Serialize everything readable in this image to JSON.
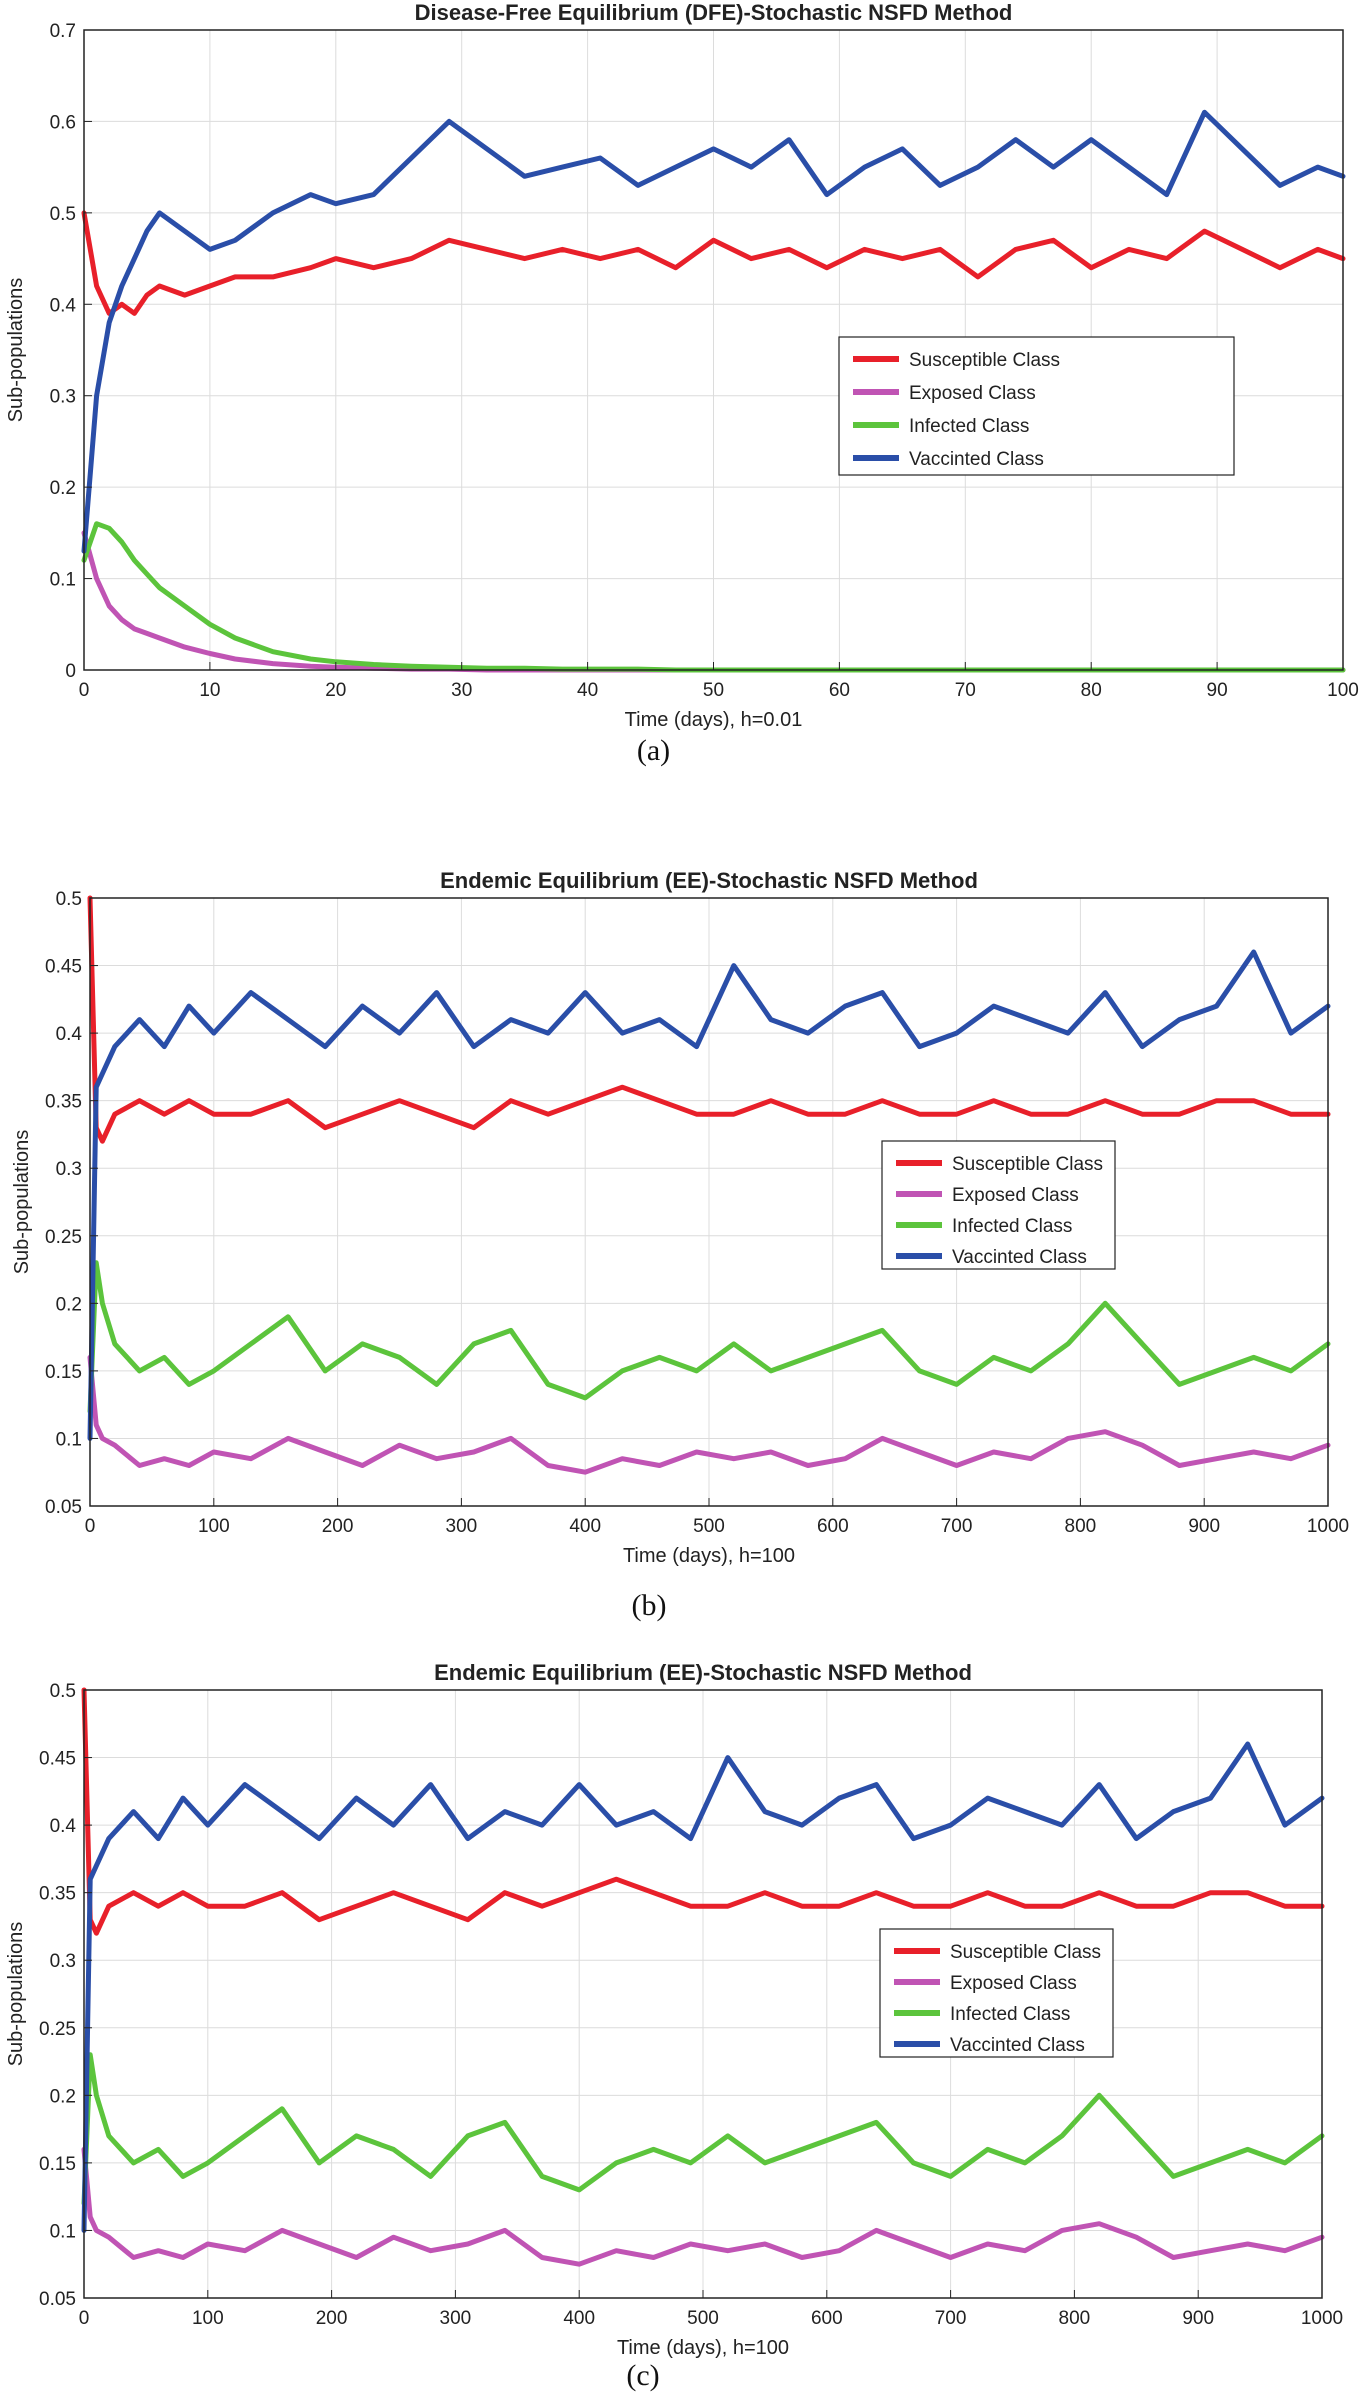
{
  "chart_data": [
    {
      "type": "line",
      "title": "Disease-Free Equilibrium (DFE)-Stochastic NSFD Method",
      "xlabel": "Time (days), h=0.01",
      "ylabel": "Sub-populations",
      "caption": "(a)",
      "xlim": [
        0,
        100
      ],
      "ylim": [
        0,
        0.7
      ],
      "xticks": [
        0,
        10,
        20,
        30,
        40,
        50,
        60,
        70,
        80,
        90,
        100
      ],
      "yticks": [
        0,
        0.1,
        0.2,
        0.3,
        0.4,
        0.5,
        0.6,
        0.7
      ],
      "grid": true,
      "legend_position": "center-right",
      "x": [
        0,
        1,
        2,
        3,
        4,
        5,
        6,
        8,
        10,
        12,
        15,
        18,
        20,
        23,
        26,
        29,
        32,
        35,
        38,
        41,
        44,
        47,
        50,
        53,
        56,
        59,
        62,
        65,
        68,
        71,
        74,
        77,
        80,
        83,
        86,
        89,
        92,
        95,
        98,
        100
      ],
      "series": [
        {
          "name": "Susceptible Class",
          "color": "#e8202a",
          "values": [
            0.5,
            0.42,
            0.39,
            0.4,
            0.39,
            0.41,
            0.42,
            0.41,
            0.42,
            0.43,
            0.43,
            0.44,
            0.45,
            0.44,
            0.45,
            0.47,
            0.46,
            0.45,
            0.46,
            0.45,
            0.46,
            0.44,
            0.47,
            0.45,
            0.46,
            0.44,
            0.46,
            0.45,
            0.46,
            0.43,
            0.46,
            0.47,
            0.44,
            0.46,
            0.45,
            0.48,
            0.46,
            0.44,
            0.46,
            0.45
          ]
        },
        {
          "name": "Exposed Class",
          "color": "#c054b4",
          "values": [
            0.15,
            0.1,
            0.07,
            0.055,
            0.045,
            0.04,
            0.035,
            0.025,
            0.018,
            0.012,
            0.007,
            0.004,
            0.003,
            0.002,
            0.001,
            0.001,
            0.0,
            0.0,
            0.0,
            0.0,
            0.0,
            0.0,
            0.0,
            0.0,
            0.0,
            0.0,
            0.0,
            0.0,
            0.0,
            0.0,
            0.0,
            0.0,
            0.0,
            0.0,
            0.0,
            0.0,
            0.0,
            0.0,
            0.0,
            0.0
          ]
        },
        {
          "name": "Infected Class",
          "color": "#5cc43c",
          "values": [
            0.12,
            0.16,
            0.155,
            0.14,
            0.12,
            0.105,
            0.09,
            0.07,
            0.05,
            0.035,
            0.02,
            0.012,
            0.009,
            0.006,
            0.004,
            0.003,
            0.002,
            0.002,
            0.001,
            0.001,
            0.001,
            0.0,
            0.0,
            0.0,
            0.0,
            0.0,
            0.0,
            0.0,
            0.0,
            0.0,
            0.0,
            0.0,
            0.0,
            0.0,
            0.0,
            0.0,
            0.0,
            0.0,
            0.0,
            0.0
          ]
        },
        {
          "name": "Vaccinted Class",
          "color": "#2a4ea8",
          "values": [
            0.13,
            0.3,
            0.38,
            0.42,
            0.45,
            0.48,
            0.5,
            0.48,
            0.46,
            0.47,
            0.5,
            0.52,
            0.51,
            0.52,
            0.56,
            0.6,
            0.57,
            0.54,
            0.55,
            0.56,
            0.53,
            0.55,
            0.57,
            0.55,
            0.58,
            0.52,
            0.55,
            0.57,
            0.53,
            0.55,
            0.58,
            0.55,
            0.58,
            0.55,
            0.52,
            0.61,
            0.57,
            0.53,
            0.55,
            0.54
          ]
        }
      ]
    },
    {
      "type": "line",
      "title": "Endemic Equilibrium (EE)-Stochastic NSFD Method",
      "xlabel": "Time (days), h=100",
      "ylabel": "Sub-populations",
      "caption": "(b)",
      "xlim": [
        0,
        1000
      ],
      "ylim": [
        0.05,
        0.5
      ],
      "xticks": [
        0,
        100,
        200,
        300,
        400,
        500,
        600,
        700,
        800,
        900,
        1000
      ],
      "yticks": [
        0.05,
        0.1,
        0.15,
        0.2,
        0.25,
        0.3,
        0.35,
        0.4,
        0.45,
        0.5
      ],
      "grid": true,
      "legend_position": "center-right",
      "x": [
        0,
        5,
        10,
        20,
        40,
        60,
        80,
        100,
        130,
        160,
        190,
        220,
        250,
        280,
        310,
        340,
        370,
        400,
        430,
        460,
        490,
        520,
        550,
        580,
        610,
        640,
        670,
        700,
        730,
        760,
        790,
        820,
        850,
        880,
        910,
        940,
        970,
        1000
      ],
      "series": [
        {
          "name": "Susceptible Class",
          "color": "#e8202a",
          "values": [
            0.5,
            0.33,
            0.32,
            0.34,
            0.35,
            0.34,
            0.35,
            0.34,
            0.34,
            0.35,
            0.33,
            0.34,
            0.35,
            0.34,
            0.33,
            0.35,
            0.34,
            0.35,
            0.36,
            0.35,
            0.34,
            0.34,
            0.35,
            0.34,
            0.34,
            0.35,
            0.34,
            0.34,
            0.35,
            0.34,
            0.34,
            0.35,
            0.34,
            0.34,
            0.35,
            0.35,
            0.34,
            0.34
          ]
        },
        {
          "name": "Exposed Class",
          "color": "#c054b4",
          "values": [
            0.16,
            0.11,
            0.1,
            0.095,
            0.08,
            0.085,
            0.08,
            0.09,
            0.085,
            0.1,
            0.09,
            0.08,
            0.095,
            0.085,
            0.09,
            0.1,
            0.08,
            0.075,
            0.085,
            0.08,
            0.09,
            0.085,
            0.09,
            0.08,
            0.085,
            0.1,
            0.09,
            0.08,
            0.09,
            0.085,
            0.1,
            0.105,
            0.095,
            0.08,
            0.085,
            0.09,
            0.085,
            0.095
          ]
        },
        {
          "name": "Infected Class",
          "color": "#5cc43c",
          "values": [
            0.12,
            0.23,
            0.2,
            0.17,
            0.15,
            0.16,
            0.14,
            0.15,
            0.17,
            0.19,
            0.15,
            0.17,
            0.16,
            0.14,
            0.17,
            0.18,
            0.14,
            0.13,
            0.15,
            0.16,
            0.15,
            0.17,
            0.15,
            0.16,
            0.17,
            0.18,
            0.15,
            0.14,
            0.16,
            0.15,
            0.17,
            0.2,
            0.17,
            0.14,
            0.15,
            0.16,
            0.15,
            0.17
          ]
        },
        {
          "name": "Vaccinted Class",
          "color": "#2a4ea8",
          "values": [
            0.1,
            0.36,
            0.37,
            0.39,
            0.41,
            0.39,
            0.42,
            0.4,
            0.43,
            0.41,
            0.39,
            0.42,
            0.4,
            0.43,
            0.39,
            0.41,
            0.4,
            0.43,
            0.4,
            0.41,
            0.39,
            0.45,
            0.41,
            0.4,
            0.42,
            0.43,
            0.39,
            0.4,
            0.42,
            0.41,
            0.4,
            0.43,
            0.39,
            0.41,
            0.42,
            0.46,
            0.4,
            0.42
          ]
        }
      ]
    },
    {
      "type": "line",
      "title": "Endemic Equilibrium (EE)-Stochastic NSFD Method",
      "xlabel": "Time (days), h=100",
      "ylabel": "Sub-populations",
      "caption": "(c)",
      "xlim": [
        0,
        1000
      ],
      "ylim": [
        0.05,
        0.5
      ],
      "xticks": [
        0,
        100,
        200,
        300,
        400,
        500,
        600,
        700,
        800,
        900,
        1000
      ],
      "yticks": [
        0.05,
        0.1,
        0.15,
        0.2,
        0.25,
        0.3,
        0.35,
        0.4,
        0.45,
        0.5
      ],
      "grid": true,
      "legend_position": "center-right",
      "x": [
        0,
        5,
        10,
        20,
        40,
        60,
        80,
        100,
        130,
        160,
        190,
        220,
        250,
        280,
        310,
        340,
        370,
        400,
        430,
        460,
        490,
        520,
        550,
        580,
        610,
        640,
        670,
        700,
        730,
        760,
        790,
        820,
        850,
        880,
        910,
        940,
        970,
        1000
      ],
      "series": [
        {
          "name": "Susceptible Class",
          "color": "#e8202a",
          "values": [
            0.5,
            0.33,
            0.32,
            0.34,
            0.35,
            0.34,
            0.35,
            0.34,
            0.34,
            0.35,
            0.33,
            0.34,
            0.35,
            0.34,
            0.33,
            0.35,
            0.34,
            0.35,
            0.36,
            0.35,
            0.34,
            0.34,
            0.35,
            0.34,
            0.34,
            0.35,
            0.34,
            0.34,
            0.35,
            0.34,
            0.34,
            0.35,
            0.34,
            0.34,
            0.35,
            0.35,
            0.34,
            0.34
          ]
        },
        {
          "name": "Exposed Class",
          "color": "#c054b4",
          "values": [
            0.16,
            0.11,
            0.1,
            0.095,
            0.08,
            0.085,
            0.08,
            0.09,
            0.085,
            0.1,
            0.09,
            0.08,
            0.095,
            0.085,
            0.09,
            0.1,
            0.08,
            0.075,
            0.085,
            0.08,
            0.09,
            0.085,
            0.09,
            0.08,
            0.085,
            0.1,
            0.09,
            0.08,
            0.09,
            0.085,
            0.1,
            0.105,
            0.095,
            0.08,
            0.085,
            0.09,
            0.085,
            0.095
          ]
        },
        {
          "name": "Infected Class",
          "color": "#5cc43c",
          "values": [
            0.12,
            0.23,
            0.2,
            0.17,
            0.15,
            0.16,
            0.14,
            0.15,
            0.17,
            0.19,
            0.15,
            0.17,
            0.16,
            0.14,
            0.17,
            0.18,
            0.14,
            0.13,
            0.15,
            0.16,
            0.15,
            0.17,
            0.15,
            0.16,
            0.17,
            0.18,
            0.15,
            0.14,
            0.16,
            0.15,
            0.17,
            0.2,
            0.17,
            0.14,
            0.15,
            0.16,
            0.15,
            0.17
          ]
        },
        {
          "name": "Vaccinted Class",
          "color": "#2a4ea8",
          "values": [
            0.1,
            0.36,
            0.37,
            0.39,
            0.41,
            0.39,
            0.42,
            0.4,
            0.43,
            0.41,
            0.39,
            0.42,
            0.4,
            0.43,
            0.39,
            0.41,
            0.4,
            0.43,
            0.4,
            0.41,
            0.39,
            0.45,
            0.41,
            0.4,
            0.42,
            0.43,
            0.39,
            0.4,
            0.42,
            0.41,
            0.4,
            0.43,
            0.39,
            0.41,
            0.42,
            0.46,
            0.4,
            0.42
          ]
        }
      ]
    }
  ]
}
